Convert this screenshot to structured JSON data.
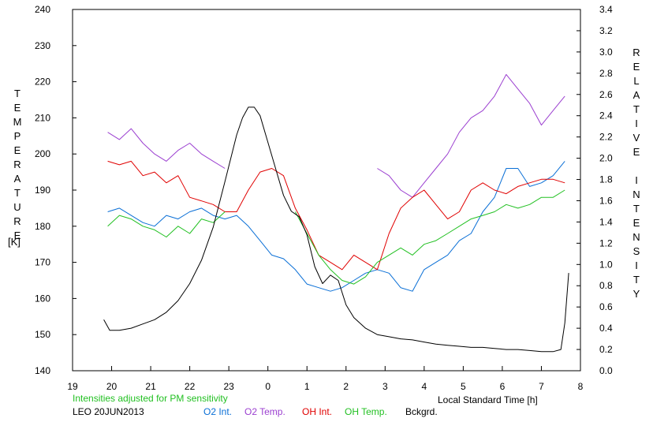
{
  "chart_data": {
    "type": "line",
    "left_axis": {
      "label": "TEMPERATURE",
      "unit": "[K]",
      "ylim": [
        140,
        240
      ],
      "ticks": [
        "140",
        "150",
        "160",
        "170",
        "180",
        "190",
        "200",
        "210",
        "220",
        "230",
        "240"
      ]
    },
    "right_axis": {
      "label": "RELATIVE INTENSITY",
      "ylim": [
        0.0,
        3.4
      ],
      "ticks": [
        "0.0",
        "0.2",
        "0.4",
        "0.6",
        "0.8",
        "1.0",
        "1.2",
        "1.4",
        "1.6",
        "1.8",
        "2.0",
        "2.2",
        "2.4",
        "2.6",
        "2.8",
        "3.0",
        "3.2",
        "3.4"
      ]
    },
    "x_axis": {
      "label": "Local Standard Time [h]",
      "xlim": [
        19,
        32
      ],
      "ticks": [
        "19",
        "20",
        "21",
        "22",
        "23",
        "0",
        "1",
        "2",
        "3",
        "4",
        "5",
        "6",
        "7",
        "8"
      ]
    },
    "note": "Intensities adjusted for PM sensitivity",
    "station": "LEO 20JUN2013",
    "grid": false,
    "legend_position": "bottom",
    "series": [
      {
        "name": "O2 Int.",
        "color": "#0a6fd6",
        "axis": "left",
        "x": [
          19.9,
          20.2,
          20.5,
          20.8,
          21.1,
          21.4,
          21.7,
          22.0,
          22.3,
          22.6,
          22.9,
          23.2,
          23.5,
          23.8,
          24.1,
          24.4,
          24.7,
          25.0,
          25.3,
          25.6,
          25.9,
          26.2,
          26.5,
          26.8,
          27.1,
          27.4,
          27.7,
          28.0,
          28.3,
          28.6,
          28.9,
          29.2,
          29.5,
          29.8,
          30.1,
          30.4,
          30.7,
          31.0,
          31.3,
          31.6
        ],
        "y": [
          184,
          185,
          183,
          181,
          180,
          183,
          182,
          184,
          185,
          183,
          182,
          183,
          180,
          176,
          172,
          171,
          168,
          164,
          163,
          162,
          163,
          165,
          167,
          168,
          167,
          163,
          162,
          168,
          170,
          172,
          176,
          178,
          184,
          188,
          196,
          196,
          191,
          192,
          194,
          198
        ]
      },
      {
        "name": "O2 Temp.",
        "color": "#9b3fd0",
        "axis": "left",
        "x": [
          19.9,
          20.2,
          20.5,
          20.8,
          21.1,
          21.4,
          21.7,
          22.0,
          22.3,
          22.6,
          22.9,
          23.2,
          23.5,
          23.8,
          24.1,
          24.4,
          24.7,
          25.0,
          25.3,
          25.6,
          25.9,
          26.2,
          26.5,
          26.8,
          27.1,
          27.4,
          27.7,
          28.0,
          28.3,
          28.6,
          28.9,
          29.2,
          29.5,
          29.8,
          30.1,
          30.4,
          30.7,
          31.0,
          31.3,
          31.6
        ],
        "y": [
          206,
          204,
          207,
          203,
          200,
          198,
          201,
          203,
          200,
          198,
          196,
          null,
          null,
          null,
          null,
          null,
          null,
          null,
          null,
          null,
          null,
          null,
          null,
          196,
          194,
          190,
          188,
          192,
          196,
          200,
          206,
          210,
          212,
          216,
          222,
          218,
          214,
          208,
          212,
          216
        ]
      },
      {
        "name": "OH Int.",
        "color": "#e00000",
        "axis": "left",
        "x": [
          19.9,
          20.2,
          20.5,
          20.8,
          21.1,
          21.4,
          21.7,
          22.0,
          22.3,
          22.6,
          22.9,
          23.2,
          23.5,
          23.8,
          24.1,
          24.4,
          24.7,
          25.0,
          25.3,
          25.6,
          25.9,
          26.2,
          26.5,
          26.8,
          27.1,
          27.4,
          27.7,
          28.0,
          28.3,
          28.6,
          28.9,
          29.2,
          29.5,
          29.8,
          30.1,
          30.4,
          30.7,
          31.0,
          31.3,
          31.6
        ],
        "y": [
          198,
          197,
          198,
          194,
          195,
          192,
          194,
          188,
          187,
          186,
          184,
          184,
          190,
          195,
          196,
          194,
          185,
          179,
          172,
          170,
          168,
          172,
          170,
          168,
          178,
          185,
          188,
          190,
          186,
          182,
          184,
          190,
          192,
          190,
          189,
          191,
          192,
          193,
          193,
          192
        ]
      },
      {
        "name": "OH Temp.",
        "color": "#22c022",
        "axis": "left",
        "x": [
          19.9,
          20.2,
          20.5,
          20.8,
          21.1,
          21.4,
          21.7,
          22.0,
          22.3,
          22.6,
          22.9,
          23.2,
          23.5,
          23.8,
          24.1,
          24.4,
          24.7,
          25.0,
          25.3,
          25.6,
          25.9,
          26.2,
          26.5,
          26.8,
          27.1,
          27.4,
          27.7,
          28.0,
          28.3,
          28.6,
          28.9,
          29.2,
          29.5,
          29.8,
          30.1,
          30.4,
          30.7,
          31.0,
          31.3,
          31.6
        ],
        "y": [
          180,
          183,
          182,
          180,
          179,
          177,
          180,
          178,
          182,
          181,
          184,
          null,
          null,
          null,
          null,
          null,
          184,
          178,
          172,
          168,
          165,
          164,
          166,
          170,
          172,
          174,
          172,
          175,
          176,
          178,
          180,
          182,
          183,
          184,
          186,
          185,
          186,
          188,
          188,
          190
        ]
      },
      {
        "name": "Bckgrd.",
        "color": "#000000",
        "axis": "right",
        "x": [
          19.8,
          19.95,
          20.2,
          20.5,
          20.8,
          21.1,
          21.4,
          21.7,
          22.0,
          22.3,
          22.6,
          22.9,
          23.2,
          23.35,
          23.5,
          23.65,
          23.8,
          24.0,
          24.2,
          24.4,
          24.6,
          24.8,
          25.0,
          25.2,
          25.4,
          25.6,
          25.8,
          26.0,
          26.2,
          26.5,
          26.8,
          27.1,
          27.4,
          27.7,
          28.0,
          28.3,
          28.6,
          28.9,
          29.2,
          29.5,
          29.8,
          30.1,
          30.4,
          30.7,
          31.0,
          31.3,
          31.5,
          31.6,
          31.7
        ],
        "y": [
          0.48,
          0.38,
          0.38,
          0.4,
          0.44,
          0.48,
          0.55,
          0.66,
          0.82,
          1.04,
          1.35,
          1.78,
          2.22,
          2.38,
          2.48,
          2.48,
          2.4,
          2.15,
          1.9,
          1.65,
          1.5,
          1.45,
          1.28,
          0.98,
          0.82,
          0.9,
          0.85,
          0.62,
          0.5,
          0.4,
          0.34,
          0.32,
          0.3,
          0.29,
          0.27,
          0.25,
          0.24,
          0.23,
          0.22,
          0.22,
          0.21,
          0.2,
          0.2,
          0.19,
          0.18,
          0.18,
          0.2,
          0.45,
          0.92
        ]
      }
    ]
  }
}
